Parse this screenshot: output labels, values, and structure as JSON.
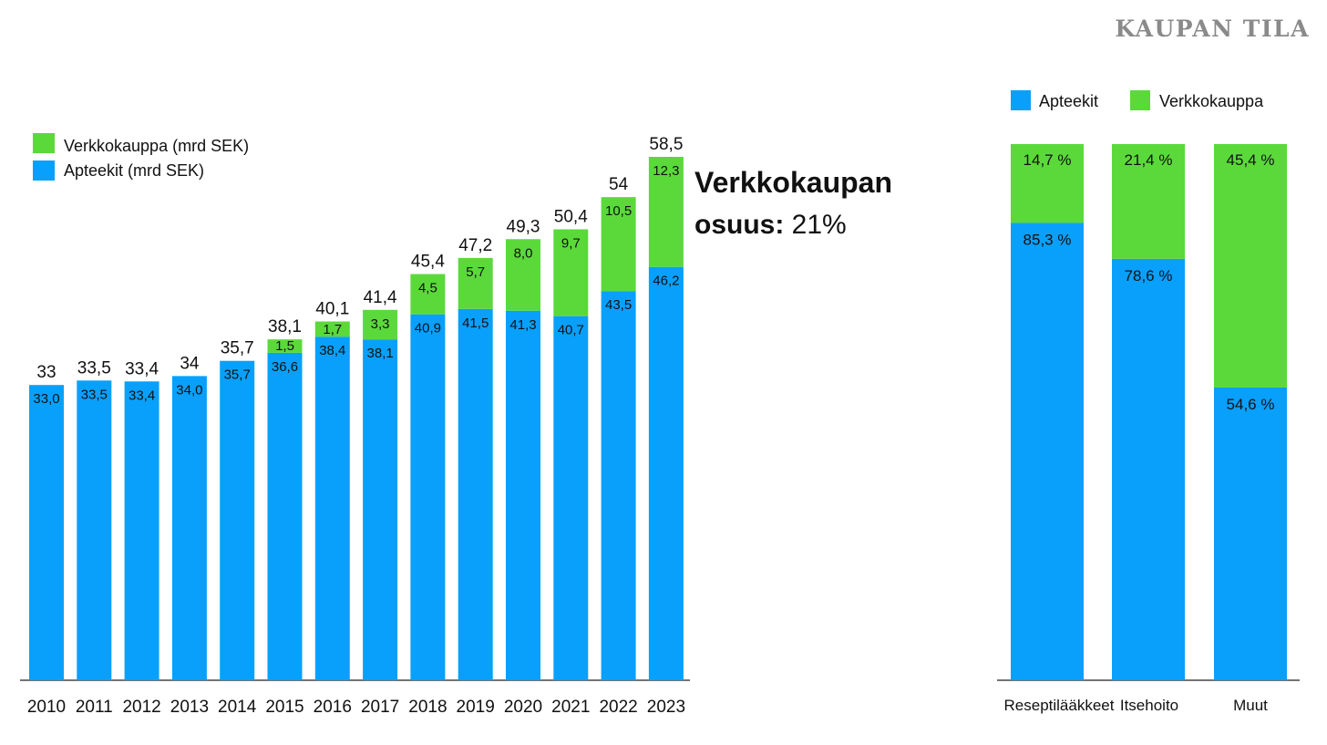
{
  "brand": "KAUPAN TILA",
  "chart_data": [
    {
      "type": "bar",
      "stacked": true,
      "categories": [
        "2010",
        "2011",
        "2012",
        "2013",
        "2014",
        "2015",
        "2016",
        "2017",
        "2018",
        "2019",
        "2020",
        "2021",
        "2022",
        "2023"
      ],
      "series": [
        {
          "name": "Apteekit (mrd SEK)",
          "color": "#09a0fb",
          "values": [
            33.0,
            33.5,
            33.4,
            34.0,
            35.7,
            36.6,
            38.4,
            38.1,
            40.9,
            41.5,
            41.3,
            40.7,
            43.5,
            46.2
          ],
          "labels": [
            "33,0",
            "33,5",
            "33,4",
            "34,0",
            "35,7",
            "36,6",
            "38,4",
            "38,1",
            "40,9",
            "41,5",
            "41,3",
            "40,7",
            "43,5",
            "46,2"
          ]
        },
        {
          "name": "Verkkokauppa (mrd SEK)",
          "color": "#5bd93b",
          "values": [
            0,
            0,
            0,
            0,
            0,
            1.5,
            1.7,
            3.3,
            4.5,
            5.7,
            8.0,
            9.7,
            10.5,
            12.3
          ],
          "labels": [
            "",
            "",
            "",
            "",
            "",
            "1,5",
            "1,7",
            "3,3",
            "4,5",
            "5,7",
            "8,0",
            "9,7",
            "10,5",
            "12,3"
          ]
        }
      ],
      "totals": [
        "33",
        "33,5",
        "33,4",
        "34",
        "35,7",
        "38,1",
        "40,1",
        "41,4",
        "45,4",
        "47,2",
        "49,3",
        "50,4",
        "54",
        "58,5"
      ],
      "ylim": [
        0,
        63
      ],
      "legend_position": "top-left",
      "annotation": {
        "line1": "Verkkokaupan",
        "line2_bold": "osuus:",
        "line2_value": "21%"
      },
      "grid": false
    },
    {
      "type": "bar",
      "stacked": true,
      "percent": true,
      "categories": [
        "Reseptilääkkeet",
        "Itsehoito",
        "Muut"
      ],
      "series": [
        {
          "name": "Apteekit",
          "color": "#09a0fb",
          "values": [
            85.3,
            78.6,
            54.6
          ],
          "labels": [
            "85,3 %",
            "78,6 %",
            "54,6 %"
          ]
        },
        {
          "name": "Verkkokauppa",
          "color": "#5bd93b",
          "values": [
            14.7,
            21.4,
            45.4
          ],
          "labels": [
            "14,7 %",
            "21,4 %",
            "45,4 %"
          ]
        }
      ],
      "ylim": [
        0,
        100
      ],
      "legend_position": "top",
      "grid": false
    }
  ]
}
